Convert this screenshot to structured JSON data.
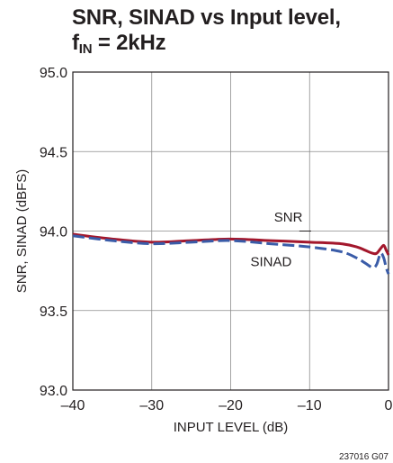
{
  "chart_data": {
    "type": "line",
    "title": {
      "line1": "SNR, SINAD vs Input level,",
      "line2_pre": "f",
      "line2_sub": "IN",
      "line2_post": " = 2kHz"
    },
    "xlabel": "INPUT LEVEL (dB)",
    "ylabel": "SNR, SINAD (dBFS)",
    "xlim": [
      -40,
      0
    ],
    "ylim": [
      93.0,
      95.0
    ],
    "x_ticks": [
      {
        "value": -40,
        "label": "–40"
      },
      {
        "value": -30,
        "label": "–30"
      },
      {
        "value": -20,
        "label": "–20"
      },
      {
        "value": -10,
        "label": "–10"
      },
      {
        "value": 0,
        "label": "0"
      }
    ],
    "y_ticks": [
      {
        "value": 93.0,
        "label": "93.0"
      },
      {
        "value": 93.5,
        "label": "93.5"
      },
      {
        "value": 94.0,
        "label": "94.0"
      },
      {
        "value": 94.5,
        "label": "94.5"
      },
      {
        "value": 95.0,
        "label": "95.0"
      }
    ],
    "grid": true,
    "series": [
      {
        "name": "SNR",
        "color": "#a3172c",
        "dash": "solid",
        "x": [
          -40,
          -35,
          -30,
          -25,
          -20,
          -15,
          -10,
          -6,
          -4,
          -3,
          -2,
          -1.5,
          -1,
          -0.6,
          -0.3,
          0
        ],
        "y": [
          93.98,
          93.95,
          93.93,
          93.94,
          93.95,
          93.94,
          93.93,
          93.92,
          93.9,
          93.88,
          93.86,
          93.86,
          93.89,
          93.91,
          93.88,
          93.85
        ]
      },
      {
        "name": "SINAD",
        "color": "#3a5ca8",
        "dash": "dashed",
        "x": [
          -40,
          -35,
          -30,
          -25,
          -20,
          -15,
          -10,
          -6,
          -4,
          -3,
          -2,
          -1.5,
          -1,
          -0.6,
          -0.3,
          0
        ],
        "y": [
          93.97,
          93.94,
          93.92,
          93.93,
          93.94,
          93.92,
          93.9,
          93.87,
          93.83,
          93.8,
          93.77,
          93.79,
          93.86,
          93.83,
          93.77,
          93.73
        ]
      }
    ],
    "annotations": [
      {
        "text": "SNR",
        "series": "SNR"
      },
      {
        "text": "SINAD",
        "series": "SINAD"
      }
    ],
    "figure_id": "237016 G07"
  }
}
